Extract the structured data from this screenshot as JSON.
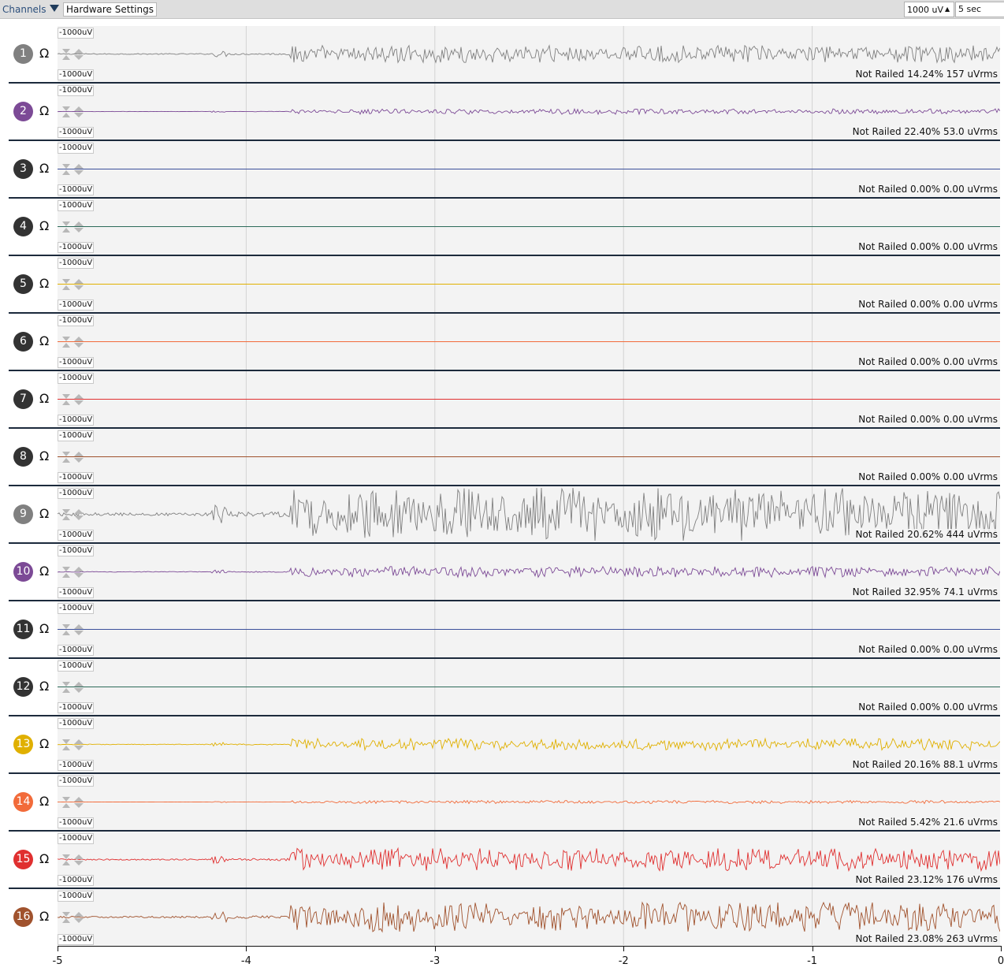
{
  "toolbar": {
    "channels_label": "Channels",
    "hardware_settings_label": "Hardware Settings",
    "vertical_scale": "1000 uV",
    "window_length": "5 sec"
  },
  "icons": {
    "dropdown_arrow": "triangle-down-icon",
    "impedance": "omega-icon",
    "scale_controls": "scale-arrows-icon"
  },
  "channels": [
    {
      "number": "1",
      "color": "#808080",
      "badge_color": "#808080",
      "top_label": "-1000uV",
      "bottom_label": "-1000uV",
      "status": "Not Railed 14.24% 157 uVrms",
      "amplitude": 0.32
    },
    {
      "number": "2",
      "color": "#7c4a96",
      "badge_color": "#7c4a96",
      "top_label": "-1000uV",
      "bottom_label": "-1000uV",
      "status": "Not Railed 22.40% 53.0 uVrms",
      "amplitude": 0.1
    },
    {
      "number": "3",
      "color": "#3b4f9a",
      "badge_color": "#333333",
      "top_label": "-1000uV",
      "bottom_label": "-1000uV",
      "status": "Not Railed 0.00% 0.00 uVrms",
      "amplitude": 0
    },
    {
      "number": "4",
      "color": "#2d6b5a",
      "badge_color": "#333333",
      "top_label": "-1000uV",
      "bottom_label": "-1000uV",
      "status": "Not Railed 0.00% 0.00 uVrms",
      "amplitude": 0
    },
    {
      "number": "5",
      "color": "#e0b000",
      "badge_color": "#333333",
      "top_label": "-1000uV",
      "bottom_label": "-1000uV",
      "status": "Not Railed 0.00% 0.00 uVrms",
      "amplitude": 0
    },
    {
      "number": "6",
      "color": "#f26b3a",
      "badge_color": "#333333",
      "top_label": "-1000uV",
      "bottom_label": "-1000uV",
      "status": "Not Railed 0.00% 0.00 uVrms",
      "amplitude": 0
    },
    {
      "number": "7",
      "color": "#e03030",
      "badge_color": "#333333",
      "top_label": "-1000uV",
      "bottom_label": "-1000uV",
      "status": "Not Railed 0.00% 0.00 uVrms",
      "amplitude": 0
    },
    {
      "number": "8",
      "color": "#a0522d",
      "badge_color": "#333333",
      "top_label": "-1000uV",
      "bottom_label": "-1000uV",
      "status": "Not Railed 0.00% 0.00 uVrms",
      "amplitude": 0
    },
    {
      "number": "9",
      "color": "#808080",
      "badge_color": "#808080",
      "top_label": "-1000uV",
      "bottom_label": "-1000uV",
      "status": "Not Railed 20.62% 444 uVrms",
      "amplitude": 1.0
    },
    {
      "number": "10",
      "color": "#7c4a96",
      "badge_color": "#7c4a96",
      "top_label": "-1000uV",
      "bottom_label": "-1000uV",
      "status": "Not Railed 32.95% 74.1 uVrms",
      "amplitude": 0.2
    },
    {
      "number": "11",
      "color": "#3b4f9a",
      "badge_color": "#333333",
      "top_label": "-1000uV",
      "bottom_label": "-1000uV",
      "status": "Not Railed 0.00% 0.00 uVrms",
      "amplitude": 0
    },
    {
      "number": "12",
      "color": "#2d6b5a",
      "badge_color": "#333333",
      "top_label": "-1000uV",
      "bottom_label": "-1000uV",
      "status": "Not Railed 0.00% 0.00 uVrms",
      "amplitude": 0
    },
    {
      "number": "13",
      "color": "#e0b000",
      "badge_color": "#e0b000",
      "top_label": "-1000uV",
      "bottom_label": "-1000uV",
      "status": "Not Railed 20.16% 88.1 uVrms",
      "amplitude": 0.22
    },
    {
      "number": "14",
      "color": "#f26b3a",
      "badge_color": "#f26b3a",
      "top_label": "-1000uV",
      "bottom_label": "-1000uV",
      "status": "Not Railed 5.42% 21.6 uVrms",
      "amplitude": 0.06
    },
    {
      "number": "15",
      "color": "#e03030",
      "badge_color": "#e03030",
      "top_label": "-1000uV",
      "bottom_label": "-1000uV",
      "status": "Not Railed 23.12% 176 uVrms",
      "amplitude": 0.42
    },
    {
      "number": "16",
      "color": "#a0522d",
      "badge_color": "#a0522d",
      "top_label": "-1000uV",
      "bottom_label": "-1000uV",
      "status": "Not Railed 23.08% 263 uVrms",
      "amplitude": 0.55
    }
  ],
  "chart_data": {
    "type": "line",
    "x_ticks": [
      "-5",
      "-4",
      "-3",
      "-2",
      "-1",
      "0"
    ],
    "xlim": [
      -5,
      0
    ],
    "xlabel": "",
    "grid": true
  }
}
